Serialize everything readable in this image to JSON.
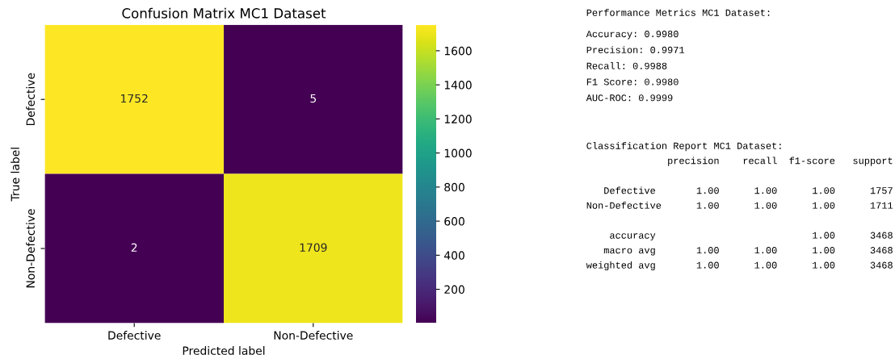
{
  "chart_data": [
    {
      "type": "heatmap",
      "title": "Confusion Matrix MC1 Dataset",
      "xlabel": "Predicted label",
      "ylabel": "True label",
      "categories": [
        "Defective",
        "Non-Defective"
      ],
      "y_categories": [
        "Defective",
        "Non-Defective"
      ],
      "cells": [
        [
          1752,
          5
        ],
        [
          2,
          1709
        ]
      ],
      "clim": [
        2,
        1752
      ],
      "cticks": [
        200,
        400,
        600,
        800,
        1000,
        1200,
        1400,
        1600
      ],
      "data_labels": true
    },
    {
      "type": "other",
      "title": "Performance Metrics MC1 Dataset:",
      "annotations": [
        "Accuracy: 0.9980\nPrecision: 0.9971\nRecall: 0.9988\nF1 Score: 0.9980\nAUC-ROC: 0.9999",
        "Classification Report MC1 Dataset:\n              precision    recall  f1-score   support\n\n   Defective       1.00      1.00      1.00      1757\nNon-Defective      1.00      1.00      1.00      1711\n\n    accuracy                           1.00      3468\n   macro avg       1.00      1.00      1.00      3468\nweighted avg       1.00      1.00      1.00      3468"
      ]
    }
  ]
}
